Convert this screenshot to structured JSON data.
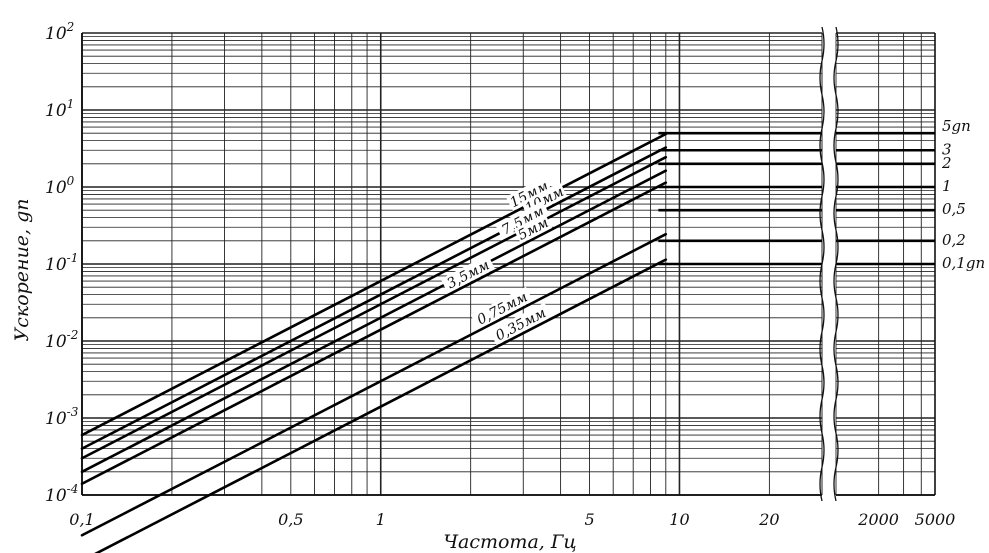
{
  "chart_data": {
    "type": "line",
    "title": "",
    "xlabel": "Частота, Гц",
    "ylabel": "Ускорение, gn",
    "x_scale": "log",
    "y_scale": "log",
    "xlim": [
      0.1,
      5000
    ],
    "ylim": [
      0.0001,
      100
    ],
    "x_axis_break": [
      30,
      1000
    ],
    "grid": true,
    "x_tick_labels": [
      "0,1",
      "0,5",
      "1",
      "5",
      "10",
      "20",
      "2000",
      "5000"
    ],
    "y_tick_labels": [
      "10^-4",
      "10^-3",
      "10^-2",
      "10^-1",
      "10^0",
      "10^1",
      "10^2"
    ],
    "displacement_lines": [
      {
        "label": "15мм",
        "points": [
          [
            0.1,
            0.0006
          ],
          [
            9,
            4.88
          ]
        ]
      },
      {
        "label": "10мм",
        "points": [
          [
            0.1,
            0.0004
          ],
          [
            9,
            3.26
          ]
        ]
      },
      {
        "label": "7,5мм",
        "points": [
          [
            0.1,
            0.0003
          ],
          [
            9,
            2.44
          ]
        ]
      },
      {
        "label": "3,5мм",
        "points": [
          [
            0.1,
            0.00014
          ],
          [
            9,
            1.14
          ]
        ]
      },
      {
        "label": "5мм",
        "points": [
          [
            0.1,
            0.0002
          ],
          [
            9,
            1.63
          ]
        ]
      },
      {
        "label": "0,75мм",
        "points": [
          [
            0.1,
            3e-05
          ],
          [
            9,
            0.244
          ]
        ]
      },
      {
        "label": "0,35мм",
        "points": [
          [
            0.1,
            1.4e-05
          ],
          [
            9,
            0.114
          ]
        ]
      }
    ],
    "acceleration_levels": [
      {
        "label": "5gn",
        "value": 5
      },
      {
        "label": "3",
        "value": 3
      },
      {
        "label": "2",
        "value": 2
      },
      {
        "label": "1",
        "value": 1
      },
      {
        "label": "0,5",
        "value": 0.5
      },
      {
        "label": "0,2",
        "value": 0.2
      },
      {
        "label": "0,1gn",
        "value": 0.1
      }
    ]
  }
}
